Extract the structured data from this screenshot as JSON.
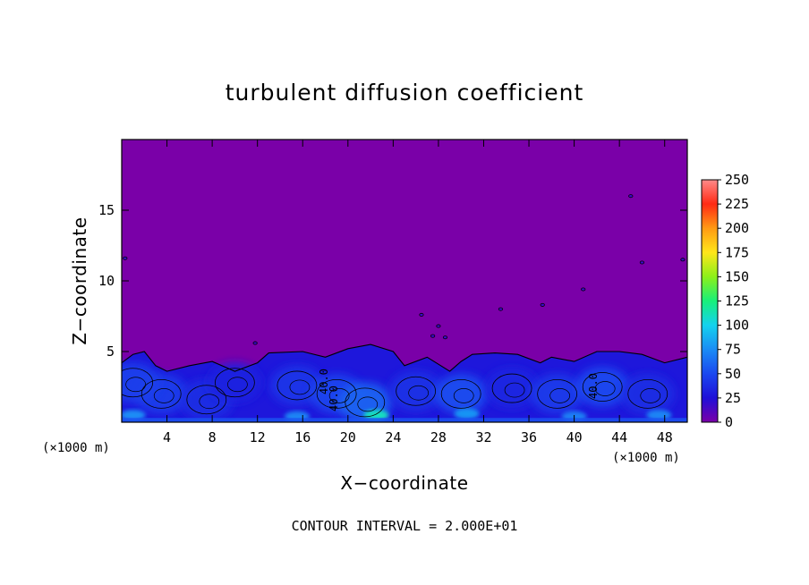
{
  "chart_data": {
    "type": "heatmap",
    "title": "turbulent diffusion coefficient",
    "xlabel": "X−coordinate",
    "ylabel": "Z−coordinate",
    "x_unit_left": "(×1000 m)",
    "x_unit_right": "(×1000 m)",
    "xlim": [
      0,
      50
    ],
    "ylim": [
      0,
      20
    ],
    "x_ticks": [
      4,
      8,
      12,
      16,
      20,
      24,
      28,
      32,
      36,
      40,
      44,
      48
    ],
    "y_ticks": [
      5,
      10,
      15
    ],
    "colorbar": {
      "ticks": [
        0,
        25,
        50,
        75,
        100,
        125,
        150,
        175,
        200,
        225,
        250
      ],
      "range": [
        0,
        250
      ],
      "colors": [
        "#7a00a8",
        "#1f10d8",
        "#1a48f0",
        "#1a8cf5",
        "#14d2ee",
        "#18f07a",
        "#8cf01a",
        "#ffe61a",
        "#ff9a14",
        "#ff2a14",
        "#ff8a8a"
      ]
    },
    "contour_interval": "CONTOUR INTERVAL = 2.000E+01",
    "contour_labels": [
      "40.0",
      "40.0",
      "40.0"
    ],
    "boundary_layer": {
      "top_profile": [
        [
          0,
          4.2
        ],
        [
          1,
          4.8
        ],
        [
          2,
          5.0
        ],
        [
          3,
          4.0
        ],
        [
          4,
          3.6
        ],
        [
          6,
          4.0
        ],
        [
          8,
          4.3
        ],
        [
          10,
          3.6
        ],
        [
          12,
          4.2
        ],
        [
          13,
          4.9
        ],
        [
          16,
          5.0
        ],
        [
          18,
          4.6
        ],
        [
          20,
          5.2
        ],
        [
          22,
          5.5
        ],
        [
          24,
          5.0
        ],
        [
          25,
          4.0
        ],
        [
          27,
          4.6
        ],
        [
          29,
          3.6
        ],
        [
          30,
          4.3
        ],
        [
          31,
          4.8
        ],
        [
          33,
          4.9
        ],
        [
          35,
          4.8
        ],
        [
          37,
          4.2
        ],
        [
          38,
          4.6
        ],
        [
          40,
          4.3
        ],
        [
          42,
          5.0
        ],
        [
          44,
          5.0
        ],
        [
          46,
          4.8
        ],
        [
          48,
          4.2
        ],
        [
          50,
          4.6
        ]
      ],
      "cells": [
        {
          "x": 3.5,
          "z": 2.0,
          "v": 45
        },
        {
          "x": 7.5,
          "z": 1.6,
          "v": 38
        },
        {
          "x": 15.5,
          "z": 2.6,
          "v": 42
        },
        {
          "x": 19.0,
          "z": 2.0,
          "v": 48
        },
        {
          "x": 21.5,
          "z": 1.4,
          "v": 60
        },
        {
          "x": 26.0,
          "z": 2.2,
          "v": 40
        },
        {
          "x": 30.0,
          "z": 2.0,
          "v": 52
        },
        {
          "x": 34.5,
          "z": 2.4,
          "v": 35
        },
        {
          "x": 38.5,
          "z": 2.0,
          "v": 44
        },
        {
          "x": 42.5,
          "z": 2.5,
          "v": 50
        },
        {
          "x": 46.5,
          "z": 2.0,
          "v": 38
        },
        {
          "x": 10.0,
          "z": 2.8,
          "v": 34
        },
        {
          "x": 1.0,
          "z": 2.8,
          "v": 46
        }
      ],
      "hot_spots": [
        {
          "x": 1.0,
          "z": 0.5,
          "v": 75
        },
        {
          "x": 15.5,
          "z": 0.4,
          "v": 72
        },
        {
          "x": 22.5,
          "z": 0.5,
          "v": 110
        },
        {
          "x": 30.5,
          "z": 0.6,
          "v": 78
        },
        {
          "x": 40.0,
          "z": 0.4,
          "v": 70
        },
        {
          "x": 47.5,
          "z": 0.5,
          "v": 72
        }
      ],
      "specks": [
        [
          28.0,
          6.8
        ],
        [
          27.5,
          6.1
        ],
        [
          28.6,
          6.0
        ],
        [
          26.5,
          7.6
        ],
        [
          33.5,
          8.0
        ],
        [
          37.2,
          8.3
        ],
        [
          40.8,
          9.4
        ],
        [
          46.0,
          11.3
        ],
        [
          49.6,
          11.5
        ],
        [
          0.3,
          11.6
        ],
        [
          45.0,
          16.0
        ],
        [
          11.8,
          5.6
        ]
      ]
    }
  }
}
